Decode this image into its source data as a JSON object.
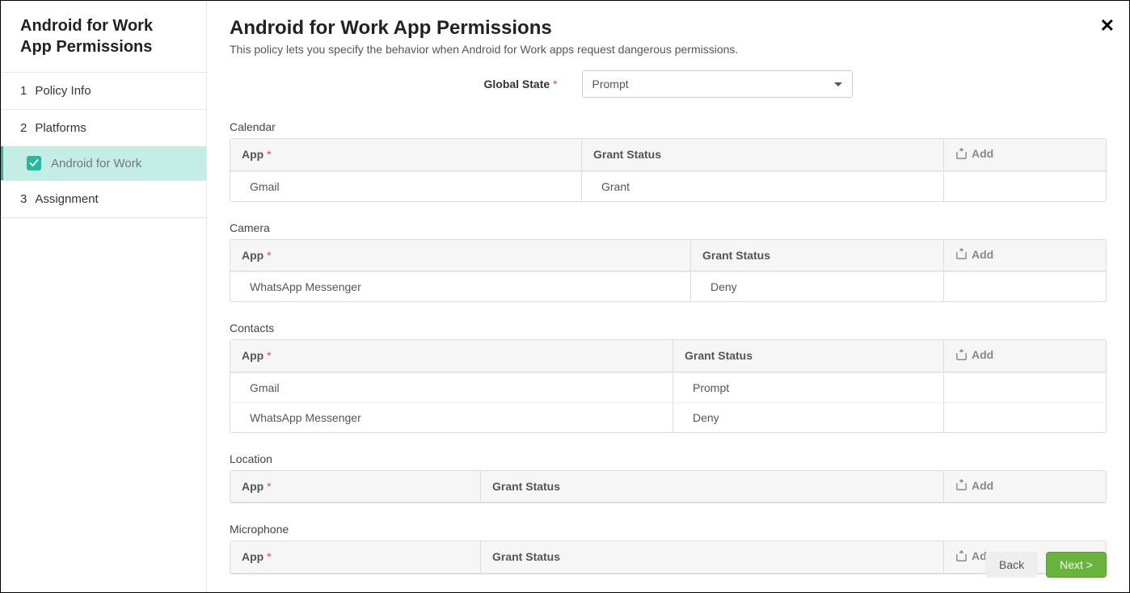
{
  "sidebar": {
    "title": "Android for Work App Permissions",
    "items": [
      {
        "num": "1",
        "label": "Policy Info"
      },
      {
        "num": "2",
        "label": "Platforms"
      },
      {
        "num": "3",
        "label": "Assignment"
      }
    ],
    "sub": {
      "label": "Android for Work"
    }
  },
  "page": {
    "title": "Android for Work App Permissions",
    "description": "This policy lets you specify the behavior when Android for Work apps request dangerous permissions."
  },
  "global": {
    "label": "Global State",
    "value": "Prompt"
  },
  "columns": {
    "app": "App",
    "status": "Grant Status",
    "add": "Add"
  },
  "sections": [
    {
      "title": "Calendar",
      "appColWidth": "435px",
      "rows": [
        {
          "app": "Gmail",
          "status": "Grant"
        }
      ]
    },
    {
      "title": "Camera",
      "appColWidth": "570px",
      "rows": [
        {
          "app": "WhatsApp Messenger",
          "status": "Deny"
        }
      ]
    },
    {
      "title": "Contacts",
      "appColWidth": "548px",
      "rows": [
        {
          "app": "Gmail",
          "status": "Prompt"
        },
        {
          "app": "WhatsApp Messenger",
          "status": "Deny"
        }
      ]
    },
    {
      "title": "Location",
      "appColWidth": "310px",
      "rows": []
    },
    {
      "title": "Microphone",
      "appColWidth": "310px",
      "rows": []
    }
  ],
  "buttons": {
    "back": "Back",
    "next": "Next >"
  },
  "colors": {
    "accent": "#26b99a",
    "activeBg": "#c4ede5",
    "nextBtn": "#6ab33e",
    "required": "#e74c3c",
    "border": "#dddddd",
    "headerBg": "#f6f6f6"
  }
}
